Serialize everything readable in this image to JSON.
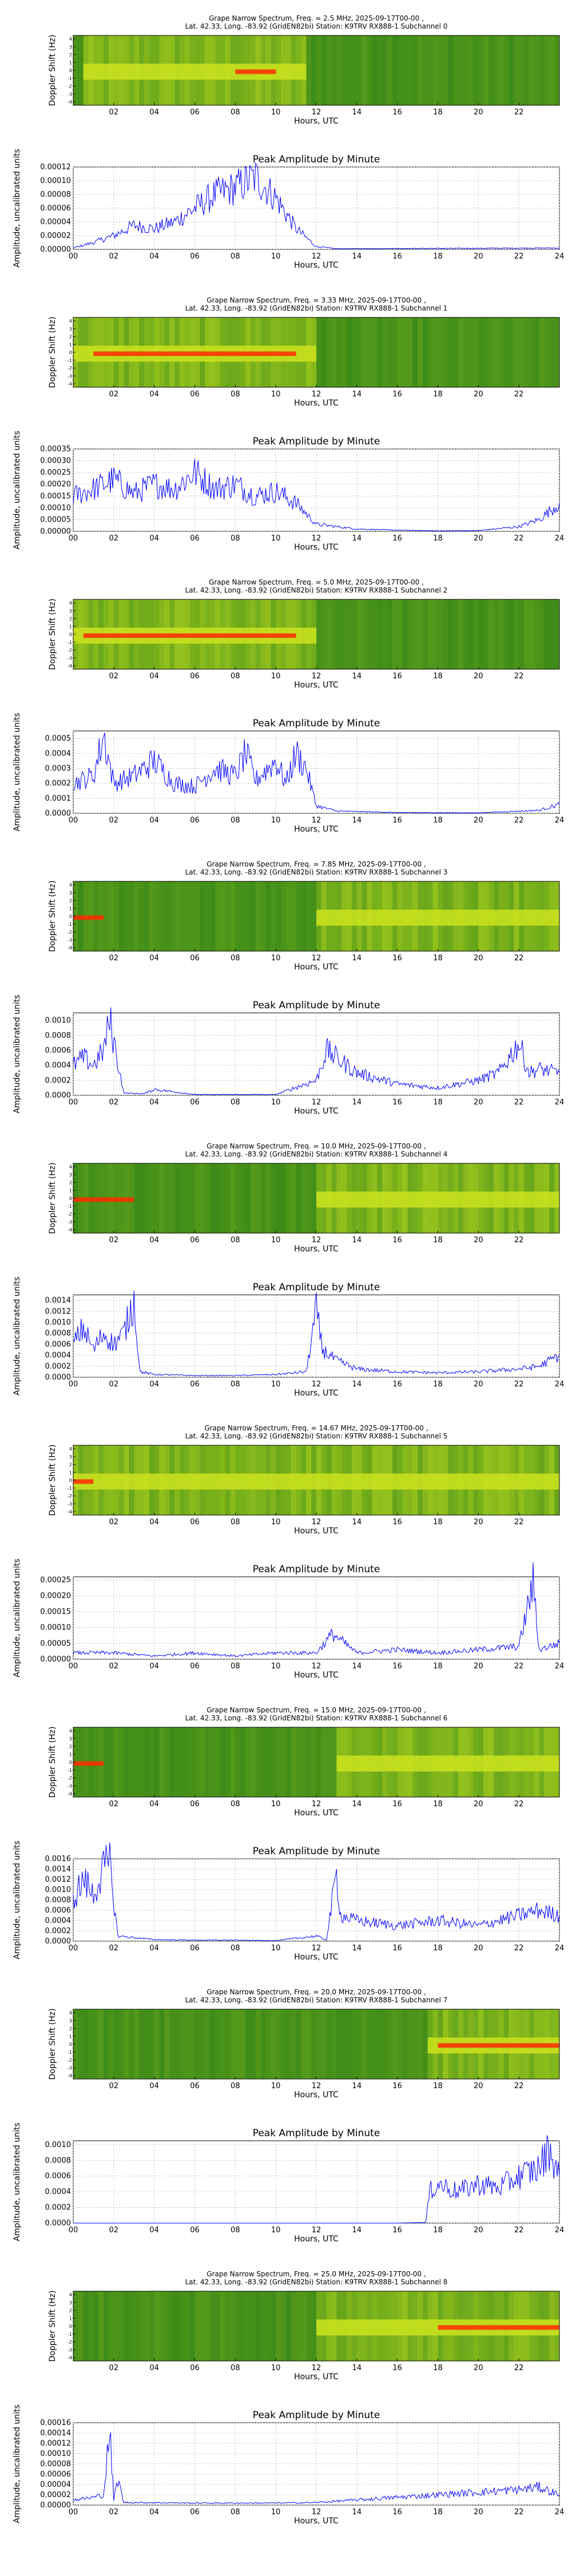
{
  "colors": {
    "line": "#0000ff",
    "grid": "#b0b0b0",
    "spectrum_low": "#3d8b1a",
    "spectrum_mid": "#c6e01e",
    "spectrum_high": "#ff2a00"
  },
  "shared": {
    "spectrogram_ylabel": "Doppler Shift (Hz)",
    "spectrogram_yticks": [
      "4",
      "3",
      "2",
      "1",
      "0",
      "-1",
      "-2",
      "-3",
      "-4"
    ],
    "spectrogram_xticks": [
      "02",
      "04",
      "06",
      "08",
      "10",
      "12",
      "14",
      "16",
      "18",
      "20",
      "22"
    ],
    "amplitude_title": "Peak Amplitude by Minute",
    "amplitude_ylabel": "Amplitude, uncalibrated units",
    "amplitude_xticks": [
      "00",
      "02",
      "04",
      "06",
      "08",
      "10",
      "12",
      "14",
      "16",
      "18",
      "20",
      "22",
      "24"
    ],
    "xlabel": "Hours, UTC"
  },
  "chart_data": [
    {
      "subchannel": 0,
      "title": "Grape Narrow Spectrum, Freq. = 2.5 MHz, 2025-09-17T00-00 ,",
      "subtitle": "Lat.  42.33, Long. -83.92 (GridEN82bi) Station: K9TRV RX888-1 Subchannel 0",
      "spectrogram": {
        "type": "heatmap",
        "xlim": [
          0,
          24
        ],
        "ylim": [
          -4,
          4
        ],
        "active_hours": [
          0.5,
          11.5
        ],
        "peak_hours": [
          8,
          10
        ]
      },
      "amplitude": {
        "type": "line",
        "xlim": [
          0,
          24
        ],
        "ylim": [
          0,
          0.00012
        ],
        "ytick_labels": [
          "0.00000",
          "0.00002",
          "0.00004",
          "0.00006",
          "0.00008",
          "0.00010",
          "0.00012"
        ],
        "x": [
          0,
          1,
          2,
          3,
          4,
          5,
          6,
          7,
          8,
          9,
          10,
          11,
          12,
          13,
          24
        ],
        "y": [
          2e-06,
          1e-05,
          2e-05,
          3.5e-05,
          3e-05,
          4e-05,
          6e-05,
          8e-05,
          9e-05,
          0.000105,
          7.5e-05,
          3e-05,
          4e-06,
          1e-06,
          2e-06
        ]
      }
    },
    {
      "subchannel": 1,
      "title": "Grape Narrow Spectrum, Freq. = 3.33 MHz, 2025-09-17T00-00 ,",
      "subtitle": "Lat.  42.33, Long. -83.92 (GridEN82bi) Station: K9TRV RX888-1 Subchannel 1",
      "spectrogram": {
        "type": "heatmap",
        "xlim": [
          0,
          24
        ],
        "ylim": [
          -4,
          4
        ],
        "active_hours": [
          0,
          12
        ],
        "peak_hours": [
          1,
          11
        ]
      },
      "amplitude": {
        "type": "line",
        "xlim": [
          0,
          24
        ],
        "ylim": [
          0,
          0.00035
        ],
        "ytick_labels": [
          "0.00000",
          "0.00005",
          "0.00010",
          "0.00015",
          "0.00020",
          "0.00025",
          "0.00030",
          "0.00035"
        ],
        "x": [
          0,
          1,
          2,
          3,
          4,
          5,
          6,
          7,
          8,
          9,
          10,
          11,
          12,
          14,
          16,
          18,
          20,
          22,
          23,
          24
        ],
        "y": [
          0.00015,
          0.00018,
          0.00022,
          0.00016,
          0.0002,
          0.00018,
          0.00025,
          0.00018,
          0.0002,
          0.00015,
          0.00017,
          0.00012,
          3e-05,
          1e-05,
          5e-06,
          2e-06,
          3e-06,
          2e-05,
          5e-05,
          0.00012
        ]
      }
    },
    {
      "subchannel": 2,
      "title": "Grape Narrow Spectrum, Freq. = 5.0 MHz, 2025-09-17T00-00 ,",
      "subtitle": "Lat.  42.33, Long. -83.92 (GridEN82bi) Station: K9TRV RX888-1 Subchannel 2",
      "spectrogram": {
        "type": "heatmap",
        "xlim": [
          0,
          24
        ],
        "ylim": [
          -4,
          4
        ],
        "active_hours": [
          0,
          12
        ],
        "peak_hours": [
          0.5,
          11
        ]
      },
      "amplitude": {
        "type": "line",
        "xlim": [
          0,
          24
        ],
        "ylim": [
          0,
          0.00055
        ],
        "ytick_labels": [
          "0.0000",
          "0.0001",
          "0.0002",
          "0.0003",
          "0.0004",
          "0.0005"
        ],
        "x": [
          0,
          1,
          1.5,
          2,
          3,
          4,
          5,
          6,
          7,
          8,
          8.5,
          9,
          10,
          10.5,
          11,
          11.5,
          12,
          13,
          16,
          20,
          23,
          24
        ],
        "y": [
          0.0002,
          0.00025,
          0.00052,
          0.0002,
          0.00025,
          0.00035,
          0.0002,
          0.00018,
          0.0003,
          0.00025,
          0.0004,
          0.00022,
          0.00035,
          0.0002,
          0.0004,
          0.0003,
          5e-05,
          1.5e-05,
          5e-06,
          3e-06,
          2e-05,
          6e-05
        ]
      }
    },
    {
      "subchannel": 3,
      "title": "Grape Narrow Spectrum, Freq. = 7.85 MHz, 2025-09-17T00-00 ,",
      "subtitle": "Lat.  42.33, Long. -83.92 (GridEN82bi) Station: K9TRV RX888-1 Subchannel 3",
      "spectrogram": {
        "type": "heatmap",
        "xlim": [
          0,
          24
        ],
        "ylim": [
          -4,
          4
        ],
        "active_hours": [
          12,
          24
        ],
        "peak_hours": [
          0,
          1.5
        ]
      },
      "amplitude": {
        "type": "line",
        "xlim": [
          0,
          24
        ],
        "ylim": [
          0,
          0.0011
        ],
        "ytick_labels": [
          "0.0000",
          "0.0002",
          "0.0004",
          "0.0006",
          "0.0008",
          "0.0010"
        ],
        "x": [
          0,
          0.5,
          1,
          1.5,
          1.8,
          2.5,
          3.5,
          4,
          6,
          10,
          12,
          12.5,
          14,
          16,
          18,
          20,
          21,
          22,
          22.5,
          23,
          24
        ],
        "y": [
          0.0004,
          0.0005,
          0.0004,
          0.0006,
          0.001,
          3e-05,
          2e-05,
          8e-05,
          1e-05,
          1e-05,
          0.0002,
          0.0006,
          0.0003,
          0.00015,
          0.0001,
          0.0002,
          0.0003,
          0.0007,
          0.0003,
          0.00035,
          0.0003
        ]
      }
    },
    {
      "subchannel": 4,
      "title": "Grape Narrow Spectrum, Freq. = 10.0 MHz, 2025-09-17T00-00 ,",
      "subtitle": "Lat.  42.33, Long. -83.92 (GridEN82bi) Station: K9TRV RX888-1 Subchannel 4",
      "spectrogram": {
        "type": "heatmap",
        "xlim": [
          0,
          24
        ],
        "ylim": [
          -4,
          4
        ],
        "active_hours": [
          12,
          24
        ],
        "peak_hours": [
          0,
          3
        ]
      },
      "amplitude": {
        "type": "line",
        "xlim": [
          0,
          24
        ],
        "ylim": [
          0,
          0.0015
        ],
        "ytick_labels": [
          "0.0000",
          "0.0002",
          "0.0004",
          "0.0006",
          "0.0008",
          "0.0010",
          "0.0012",
          "0.0014"
        ],
        "x": [
          0,
          0.5,
          1,
          1.5,
          2,
          2.5,
          3,
          3.3,
          4,
          6,
          8,
          10,
          11.5,
          12,
          12.3,
          13,
          14,
          16,
          18,
          20,
          22,
          23,
          24
        ],
        "y": [
          0.0006,
          0.0009,
          0.0005,
          0.0008,
          0.0006,
          0.0008,
          0.0014,
          0.0001,
          5e-05,
          3e-05,
          3e-05,
          5e-05,
          0.0001,
          0.0012,
          0.0005,
          0.0003,
          0.00015,
          0.0001,
          8e-05,
          0.0001,
          0.00015,
          0.0002,
          0.0004
        ]
      }
    },
    {
      "subchannel": 5,
      "title": "Grape Narrow Spectrum, Freq. = 14.67 MHz, 2025-09-17T00-00 ,",
      "subtitle": "Lat.  42.33, Long. -83.92 (GridEN82bi) Station: K9TRV RX888-1 Subchannel 5",
      "spectrogram": {
        "type": "heatmap",
        "xlim": [
          0,
          24
        ],
        "ylim": [
          -4,
          4
        ],
        "active_hours": [
          0,
          24
        ],
        "peak_hours": [
          0,
          1
        ]
      },
      "amplitude": {
        "type": "line",
        "xlim": [
          0,
          24
        ],
        "ylim": [
          0,
          0.00026
        ],
        "ytick_labels": [
          "0.00000",
          "0.00005",
          "0.00010",
          "0.00015",
          "0.00020",
          "0.00025"
        ],
        "x": [
          0,
          2,
          4,
          6,
          8,
          10,
          12,
          12.8,
          14,
          16,
          18,
          20,
          22,
          22.7,
          23,
          24
        ],
        "y": [
          2e-05,
          2e-05,
          1e-05,
          2e-05,
          1e-05,
          2e-05,
          2e-05,
          8e-05,
          2e-05,
          3e-05,
          2e-05,
          3e-05,
          4e-05,
          0.00024,
          3e-05,
          5e-05
        ]
      }
    },
    {
      "subchannel": 6,
      "title": "Grape Narrow Spectrum, Freq. = 15.0 MHz, 2025-09-17T00-00 ,",
      "subtitle": "Lat.  42.33, Long. -83.92 (GridEN82bi) Station: K9TRV RX888-1 Subchannel 6",
      "spectrogram": {
        "type": "heatmap",
        "xlim": [
          0,
          24
        ],
        "ylim": [
          -4,
          4
        ],
        "active_hours": [
          13,
          24
        ],
        "peak_hours": [
          0,
          1.5
        ]
      },
      "amplitude": {
        "type": "line",
        "xlim": [
          0,
          24
        ],
        "ylim": [
          0,
          0.0016
        ],
        "ytick_labels": [
          "0.0000",
          "0.0002",
          "0.0004",
          "0.0006",
          "0.0008",
          "0.0010",
          "0.0012",
          "0.0014",
          "0.0016"
        ],
        "x": [
          0,
          0.5,
          1,
          1.5,
          1.8,
          2.2,
          4,
          6,
          8,
          10,
          12,
          12.5,
          13,
          13.2,
          14,
          16,
          18,
          20,
          22,
          23,
          24
        ],
        "y": [
          0.0008,
          0.0012,
          0.0009,
          0.0014,
          0.0015,
          0.0001,
          3e-05,
          2e-05,
          2e-05,
          1e-05,
          0.0001,
          2e-05,
          0.0013,
          0.0005,
          0.0004,
          0.0003,
          0.0004,
          0.0003,
          0.0005,
          0.0006,
          0.0005
        ]
      }
    },
    {
      "subchannel": 7,
      "title": "Grape Narrow Spectrum, Freq. = 20.0 MHz, 2025-09-17T00-00 ,",
      "subtitle": "Lat.  42.33, Long. -83.92 (GridEN82bi) Station: K9TRV RX888-1 Subchannel 7",
      "spectrogram": {
        "type": "heatmap",
        "xlim": [
          0,
          24
        ],
        "ylim": [
          -4,
          4
        ],
        "active_hours": [
          17.5,
          24
        ],
        "peak_hours": [
          18,
          24
        ]
      },
      "amplitude": {
        "type": "line",
        "xlim": [
          0,
          24
        ],
        "ylim": [
          0,
          0.00105
        ],
        "ytick_labels": [
          "0.0000",
          "0.0002",
          "0.0004",
          "0.0006",
          "0.0008",
          "0.0010"
        ],
        "x": [
          0,
          4,
          8,
          12,
          16,
          17.4,
          17.6,
          18,
          19,
          20,
          21,
          22,
          23,
          23.5,
          24
        ],
        "y": [
          0,
          0,
          0,
          0,
          0,
          1e-05,
          0.0004,
          0.0005,
          0.0004,
          0.0005,
          0.00045,
          0.0006,
          0.0007,
          0.00095,
          0.0006
        ]
      }
    },
    {
      "subchannel": 8,
      "title": "Grape Narrow Spectrum, Freq. = 25.0 MHz, 2025-09-17T00-00 ,",
      "subtitle": "Lat.  42.33, Long. -83.92 (GridEN82bi) Station: K9TRV RX888-1 Subchannel 8",
      "spectrogram": {
        "type": "heatmap",
        "xlim": [
          0,
          24
        ],
        "ylim": [
          -4,
          4
        ],
        "active_hours": [
          12,
          24
        ],
        "peak_hours": [
          18,
          24
        ]
      },
      "amplitude": {
        "type": "line",
        "xlim": [
          0,
          24
        ],
        "ylim": [
          0,
          0.00016
        ],
        "ytick_labels": [
          "0.00000",
          "0.00002",
          "0.00004",
          "0.00006",
          "0.00008",
          "0.00010",
          "0.00012",
          "0.00014",
          "0.00016"
        ],
        "x": [
          0,
          1,
          1.5,
          1.8,
          2,
          2.2,
          2.5,
          3,
          6,
          10,
          12,
          14,
          16,
          18,
          20,
          22,
          23,
          24
        ],
        "y": [
          1e-05,
          1.5e-05,
          2e-05,
          0.000145,
          1e-05,
          5e-05,
          5e-06,
          5e-06,
          4e-06,
          4e-06,
          5e-06,
          1e-05,
          1.5e-05,
          2e-05,
          2.5e-05,
          3e-05,
          3.5e-05,
          2e-05
        ]
      }
    }
  ]
}
